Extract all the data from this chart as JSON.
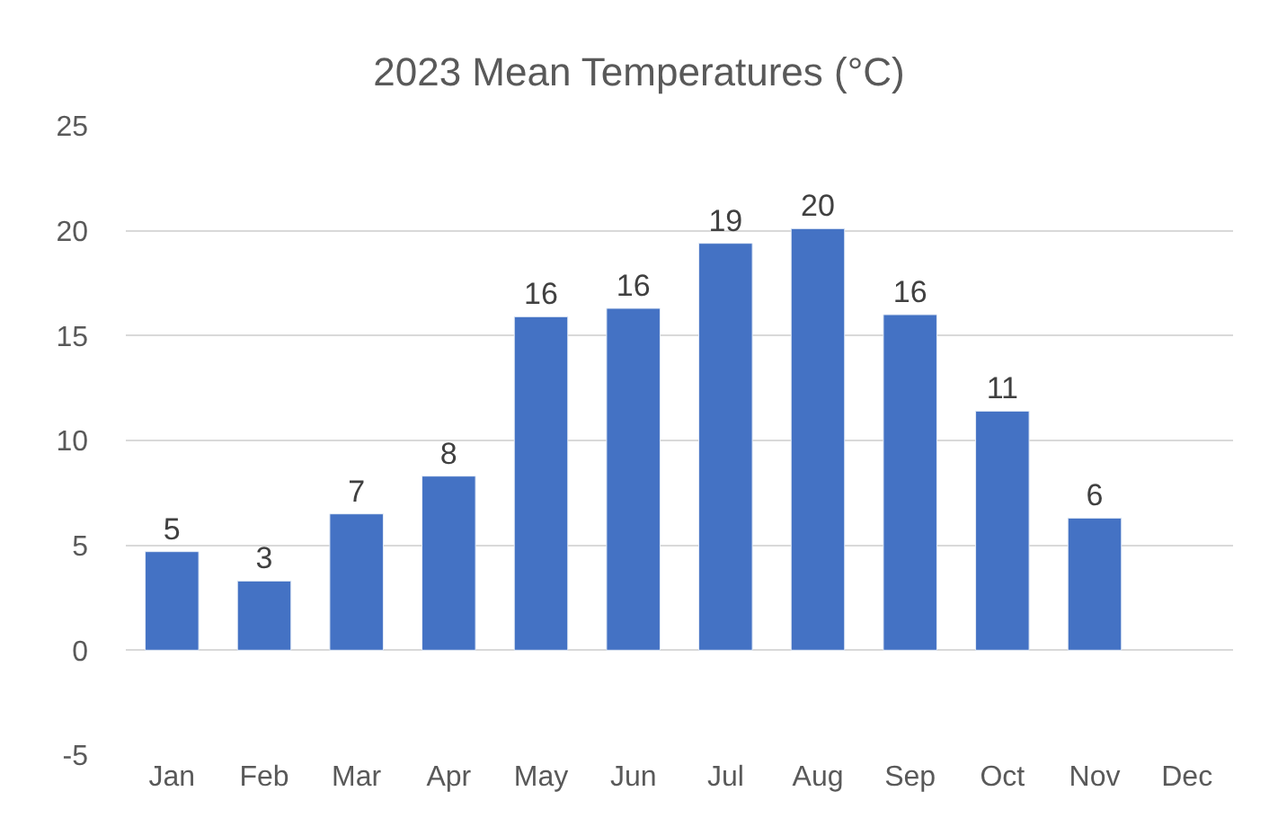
{
  "chart_data": {
    "type": "bar",
    "title": "2023 Mean Temperatures (°C)",
    "categories": [
      "Jan",
      "Feb",
      "Mar",
      "Apr",
      "May",
      "Jun",
      "Jul",
      "Aug",
      "Sep",
      "Oct",
      "Nov",
      "Dec"
    ],
    "values": [
      4.7,
      3.3,
      6.5,
      8.3,
      15.9,
      16.3,
      19.4,
      20.1,
      16.0,
      11.4,
      6.3,
      null
    ],
    "value_labels": [
      "5",
      "3",
      "7",
      "8",
      "16",
      "16",
      "19",
      "20",
      "16",
      "11",
      "6",
      null
    ],
    "color": "#4472c4",
    "ylim": [
      -5,
      25
    ],
    "yticks": [
      -5,
      0,
      5,
      10,
      15,
      20,
      25
    ],
    "grid": "y",
    "legend": false
  }
}
